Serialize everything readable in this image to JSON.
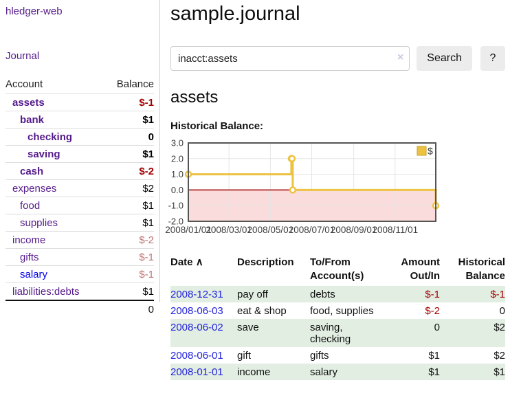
{
  "sidebar": {
    "app_title": "hledger-web",
    "nav_journal": "Journal",
    "accounts_table": {
      "headers": {
        "account": "Account",
        "balance": "Balance"
      },
      "rows": [
        {
          "account": "assets",
          "indent": 1,
          "bold": true,
          "link": "purple",
          "balance": "$-1",
          "balance_style": "neg-strong"
        },
        {
          "account": "bank",
          "indent": 2,
          "bold": true,
          "link": "purple",
          "balance": "$1",
          "balance_style": "pos"
        },
        {
          "account": "checking",
          "indent": 3,
          "bold": true,
          "link": "purple",
          "balance": "0",
          "balance_style": "pos"
        },
        {
          "account": "saving",
          "indent": 3,
          "bold": true,
          "link": "purple",
          "balance": "$1",
          "balance_style": "pos"
        },
        {
          "account": "cash",
          "indent": 2,
          "bold": true,
          "link": "purple",
          "balance": "$-2",
          "balance_style": "neg-strong"
        },
        {
          "account": "expenses",
          "indent": 1,
          "bold": false,
          "link": "purple",
          "balance": "$2",
          "balance_style": "pos"
        },
        {
          "account": "food",
          "indent": 2,
          "bold": false,
          "link": "purple",
          "balance": "$1",
          "balance_style": "pos"
        },
        {
          "account": "supplies",
          "indent": 2,
          "bold": false,
          "link": "purple",
          "balance": "$1",
          "balance_style": "pos"
        },
        {
          "account": "income",
          "indent": 1,
          "bold": false,
          "link": "purple",
          "balance": "$-2",
          "balance_style": "neg-soft"
        },
        {
          "account": "gifts",
          "indent": 2,
          "bold": false,
          "link": "purple",
          "balance": "$-1",
          "balance_style": "neg-soft"
        },
        {
          "account": "salary",
          "indent": 2,
          "bold": false,
          "link": "blue",
          "balance": "$-1",
          "balance_style": "neg-soft"
        },
        {
          "account": "liabilities:debts",
          "indent": 1,
          "bold": false,
          "link": "purple",
          "balance": "$1",
          "balance_style": "pos"
        }
      ],
      "total": "0"
    }
  },
  "main": {
    "page_title": "sample.journal",
    "search": {
      "value": "inacct:assets",
      "clear_icon": "×",
      "button_label": "Search",
      "help_label": "?"
    },
    "account_heading": "assets",
    "chart_heading": "Historical Balance:"
  },
  "chart_data": {
    "type": "line",
    "step": true,
    "title": "Historical Balance",
    "series": [
      {
        "name": "$",
        "points": [
          [
            "2008-01-01",
            1
          ],
          [
            "2008-06-01",
            2
          ],
          [
            "2008-06-02",
            2
          ],
          [
            "2008-06-03",
            0
          ],
          [
            "2008-12-31",
            -1
          ]
        ]
      }
    ],
    "x_range": [
      "2008-01-01",
      "2008-12-31"
    ],
    "x_ticks": [
      {
        "date": "2008-01-01",
        "label": "2008/01/01"
      },
      {
        "date": "2008-03-01",
        "label": "2008/03/01"
      },
      {
        "date": "2008-05-01",
        "label": "2008/05/01"
      },
      {
        "date": "2008-07-01",
        "label": "2008/07/01"
      },
      {
        "date": "2008-09-01",
        "label": "2008/09/01"
      },
      {
        "date": "2008-11-01",
        "label": "2008/11/01"
      }
    ],
    "y_ticks": [
      {
        "v": 3,
        "label": "3.0"
      },
      {
        "v": 2,
        "label": "2.0"
      },
      {
        "v": 1,
        "label": "1.0"
      },
      {
        "v": 0,
        "label": "0.0"
      },
      {
        "v": -1,
        "label": "-1.0"
      },
      {
        "v": -2,
        "label": "-2.0"
      }
    ],
    "ylim": [
      -2,
      3
    ],
    "grid": true,
    "legend": {
      "label": "$",
      "position": "top-right"
    },
    "colors": {
      "line": "#edc240",
      "marker_fill": "#ffffff",
      "negative_region": "#fbdcdc",
      "zero_line": "#a00000",
      "border": "#545454",
      "grid": "#e5e5e5",
      "tick_text": "#3c3c3c"
    }
  },
  "register": {
    "headers": {
      "date": "Date",
      "sort_icon": "∧",
      "description": "Description",
      "accounts": "To/From Account(s)",
      "amount": "Amount Out/In",
      "balance": "Historical Balance"
    },
    "rows": [
      {
        "date": "2008-12-31",
        "description": "pay off",
        "accounts": "debts",
        "amount": "$-1",
        "amount_negative": true,
        "balance": "$-1",
        "balance_negative": true
      },
      {
        "date": "2008-06-03",
        "description": "eat & shop",
        "accounts": "food, supplies",
        "amount": "$-2",
        "amount_negative": true,
        "balance": "0",
        "balance_negative": false
      },
      {
        "date": "2008-06-02",
        "description": "save",
        "accounts": "saving, checking",
        "amount": "0",
        "amount_negative": false,
        "balance": "$2",
        "balance_negative": false
      },
      {
        "date": "2008-06-01",
        "description": "gift",
        "accounts": "gifts",
        "amount": "$1",
        "amount_negative": false,
        "balance": "$2",
        "balance_negative": false
      },
      {
        "date": "2008-01-01",
        "description": "income",
        "accounts": "salary",
        "amount": "$1",
        "amount_negative": false,
        "balance": "$1",
        "balance_negative": false
      }
    ]
  }
}
